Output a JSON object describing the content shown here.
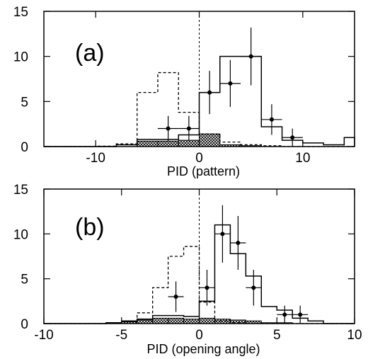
{
  "chart_data": [
    {
      "type": "histogram",
      "panel_label": "(a)",
      "xlabel": "PID (pattern)",
      "ylabel": "",
      "xlim": [
        -15,
        15
      ],
      "ylim": [
        0,
        15
      ],
      "xticks": [
        -10,
        0,
        10
      ],
      "yticks": [
        0,
        5,
        10,
        15
      ],
      "vertical_dashed_line_at_x": 0,
      "bin_edges": [
        -15,
        -14,
        -12,
        -10,
        -8,
        -6,
        -4,
        -2,
        0,
        2,
        4,
        6,
        8,
        10,
        12,
        14,
        15
      ],
      "series": [
        {
          "style": "dashed",
          "values": [
            0,
            0,
            0,
            0.05,
            0.3,
            6.0,
            8.2,
            3.8,
            1.4,
            0.5,
            0.2,
            0.1,
            0,
            0,
            0,
            0
          ]
        },
        {
          "style": "solid",
          "values": [
            0,
            0,
            0,
            0,
            0.2,
            0.8,
            0.8,
            1.3,
            6.0,
            10.0,
            10.0,
            2.2,
            0.7,
            0.4,
            0.2,
            1.0
          ]
        },
        {
          "style": "hatched",
          "values": [
            0,
            0,
            0,
            0,
            0,
            0.6,
            0.6,
            0.7,
            1.4,
            0.2,
            0.1,
            0,
            0,
            0,
            0,
            0
          ]
        }
      ],
      "points": [
        {
          "x": -3,
          "y": 2,
          "yerr": 1.4,
          "xerr": 1
        },
        {
          "x": -1,
          "y": 2,
          "yerr": 1.4,
          "xerr": 1
        },
        {
          "x": 1,
          "y": 6,
          "yerr": 2.4,
          "xerr": 1
        },
        {
          "x": 3,
          "y": 7,
          "yerr": 2.6,
          "xerr": 1
        },
        {
          "x": 5,
          "y": 10,
          "yerr": 3.2,
          "xerr": 1
        },
        {
          "x": 7,
          "y": 3,
          "yerr": 1.7,
          "xerr": 1
        },
        {
          "x": 9,
          "y": 1,
          "yerr": 1.0,
          "xerr": 1
        }
      ]
    },
    {
      "type": "histogram",
      "panel_label": "(b)",
      "xlabel": "PID (opening angle)",
      "ylabel": "",
      "xlim": [
        -10,
        10
      ],
      "ylim": [
        0,
        15
      ],
      "xticks": [
        -10,
        -5,
        0,
        5,
        10
      ],
      "yticks": [
        0,
        5,
        10,
        15
      ],
      "vertical_dashed_line_at_x": 0,
      "bin_edges": [
        -10,
        -6,
        -5,
        -4,
        -3,
        -2,
        -1,
        0,
        1,
        2,
        3,
        4,
        5,
        6,
        7,
        8,
        10
      ],
      "series": [
        {
          "style": "dashed",
          "values": [
            0,
            0.1,
            0.3,
            1.2,
            4.0,
            7.5,
            8.6,
            2.4,
            0.3,
            0.1,
            0,
            0,
            0,
            0,
            0,
            0
          ]
        },
        {
          "style": "solid",
          "values": [
            0,
            0.1,
            0.3,
            0.5,
            0.9,
            0.9,
            0.8,
            2.5,
            11.0,
            7.8,
            5.3,
            1.9,
            1.5,
            0.6,
            0.3,
            0
          ]
        },
        {
          "style": "hatched",
          "values": [
            0,
            0,
            0.2,
            0.4,
            0.6,
            0.6,
            0.5,
            0.6,
            0.5,
            0.4,
            0.3,
            0.1,
            0.1,
            0,
            0,
            0
          ]
        }
      ],
      "points": [
        {
          "x": -1.5,
          "y": 3,
          "yerr": 1.7,
          "xerr": 0.5
        },
        {
          "x": 0.5,
          "y": 4,
          "yerr": 2.0,
          "xerr": 0.5
        },
        {
          "x": 1.5,
          "y": 10,
          "yerr": 3.2,
          "xerr": 0.5
        },
        {
          "x": 2.5,
          "y": 9,
          "yerr": 3.0,
          "xerr": 0.5
        },
        {
          "x": 3.5,
          "y": 4,
          "yerr": 2.0,
          "xerr": 0.5
        },
        {
          "x": 5.5,
          "y": 1,
          "yerr": 1.0,
          "xerr": 0.5
        },
        {
          "x": 6.5,
          "y": 1,
          "yerr": 1.0,
          "xerr": 0.5
        }
      ]
    }
  ]
}
